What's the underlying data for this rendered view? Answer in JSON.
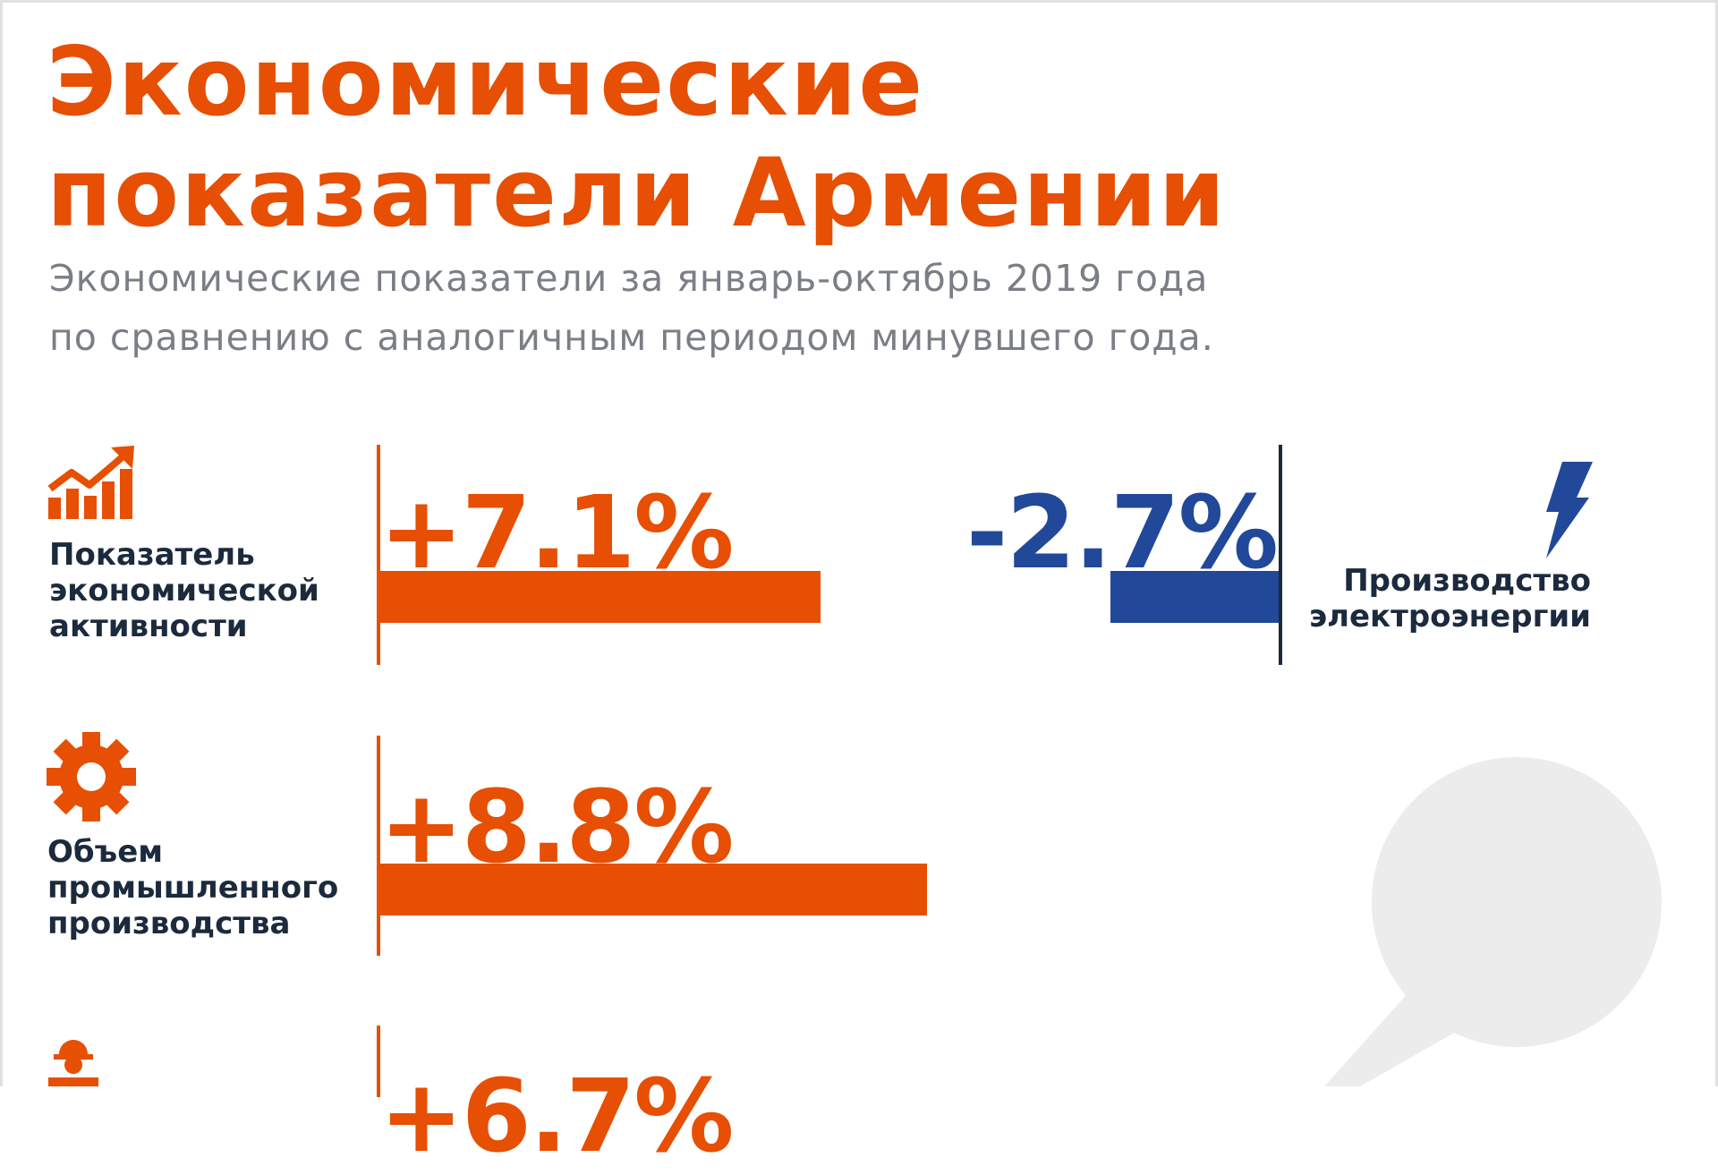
{
  "title_lines": [
    "Экономические",
    "показатели Армении"
  ],
  "subtitle_lines": [
    "Экономические показатели за январь-октябрь 2019 года",
    "по сравнению с аналогичным периодом минувшего года."
  ],
  "colors": {
    "accent": "#e64f04",
    "negative": "#22489a",
    "text": "#1c2a3d",
    "muted": "#7a7e85"
  },
  "chart_data": {
    "type": "bar",
    "orientation": "horizontal",
    "unit": "%",
    "items": [
      {
        "label_lines": [
          "Показатель",
          "экономической",
          "активности"
        ],
        "value": 7.1,
        "display": "+7.1%",
        "icon": "rising-chart-icon"
      },
      {
        "label_lines": [
          "Производство",
          "электроэнергии"
        ],
        "value": -2.7,
        "display": "-2.7%",
        "icon": "lightning-icon"
      },
      {
        "label_lines": [
          "Объем",
          "промышленного",
          "производства"
        ],
        "value": 8.8,
        "display": "+8.8%",
        "icon": "gear-icon"
      },
      {
        "label_lines": [],
        "value": 6.7,
        "display": "+6.7%",
        "icon": "worker-icon"
      }
    ]
  }
}
